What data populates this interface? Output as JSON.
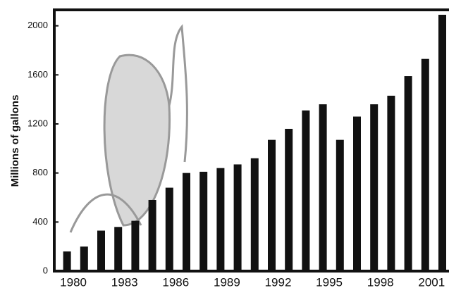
{
  "chart_data": {
    "type": "bar",
    "y_label": "Millions of gallons",
    "categories": [
      "1980",
      null,
      null,
      "1983",
      null,
      null,
      "1986",
      null,
      null,
      "1989",
      null,
      null,
      "1992",
      null,
      null,
      "1995",
      null,
      null,
      "1998",
      null,
      null,
      "2001",
      null
    ],
    "values": [
      160,
      200,
      330,
      360,
      410,
      580,
      680,
      800,
      810,
      840,
      870,
      920,
      1070,
      1160,
      1310,
      1360,
      1070,
      1260,
      1360,
      1430,
      1590,
      1730,
      2090
    ],
    "color": "#111111",
    "ylim": [
      0,
      2130
    ],
    "yticks": [
      0,
      400,
      800,
      1200,
      1600,
      2000
    ]
  }
}
